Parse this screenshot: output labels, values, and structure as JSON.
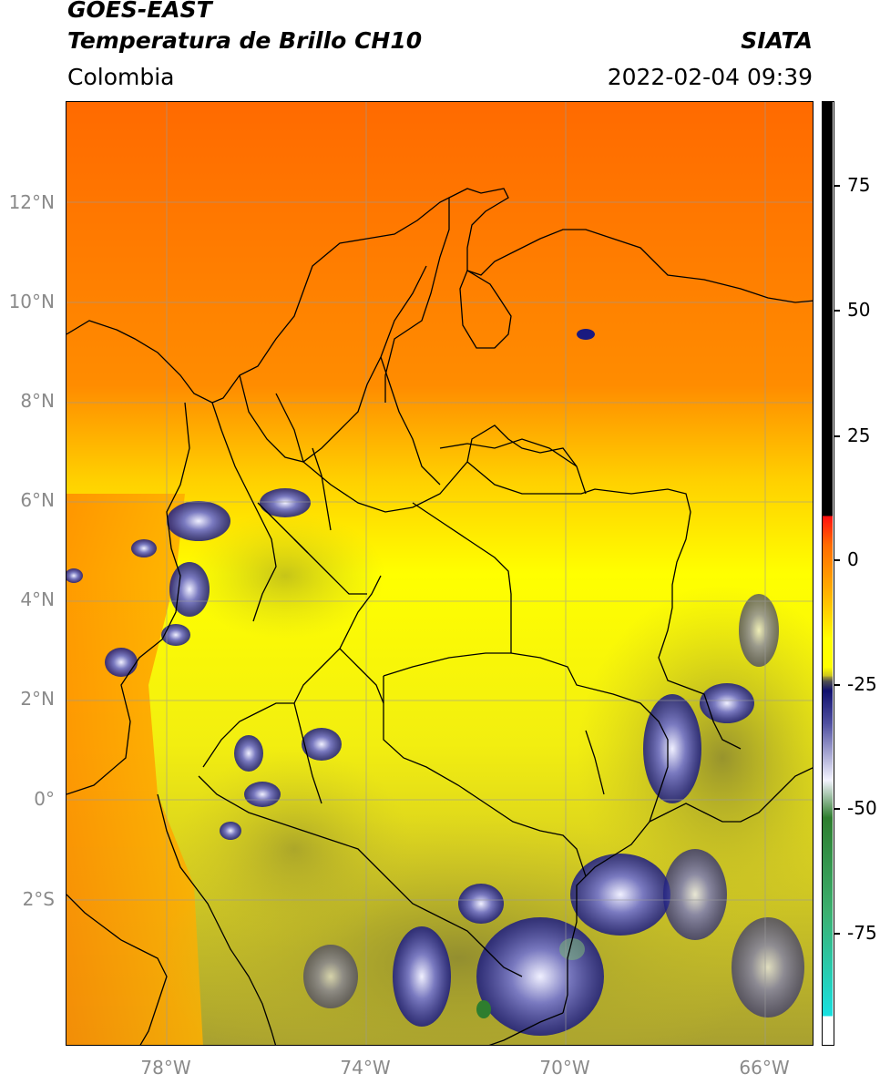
{
  "header": {
    "title_line1": "GOES-EAST",
    "title_line2": "Temperatura de Brillo CH10",
    "region": "Colombia",
    "brand": "SIATA",
    "datetime": "2022-02-04 09:39"
  },
  "axes": {
    "lat_ticks": [
      "12°N",
      "10°N",
      "8°N",
      "6°N",
      "4°N",
      "2°N",
      "0°",
      "2°S"
    ],
    "lon_ticks": [
      "78°W",
      "74°W",
      "70°W",
      "66°W"
    ]
  },
  "colorbar": {
    "tick_labels": [
      "75",
      "50",
      "25",
      "0",
      "-25",
      "-50",
      "-75"
    ],
    "colors": {
      "warm": "#000000",
      "hot": "#e01010",
      "orange": "#ff6a00",
      "yellow": "#ffff00",
      "olive": "#9a9a2a",
      "navy": "#10106e",
      "white": "#f4f4ff",
      "green": "#2e7d2e",
      "cyan": "#18d8d0"
    }
  },
  "map_colors": {
    "ocean_north": "#ff6a00",
    "land": "#f6ee10",
    "south": "#b8b030",
    "cloud": "#1a1a80",
    "border": "#000000",
    "grid": "#9a9a9a"
  }
}
